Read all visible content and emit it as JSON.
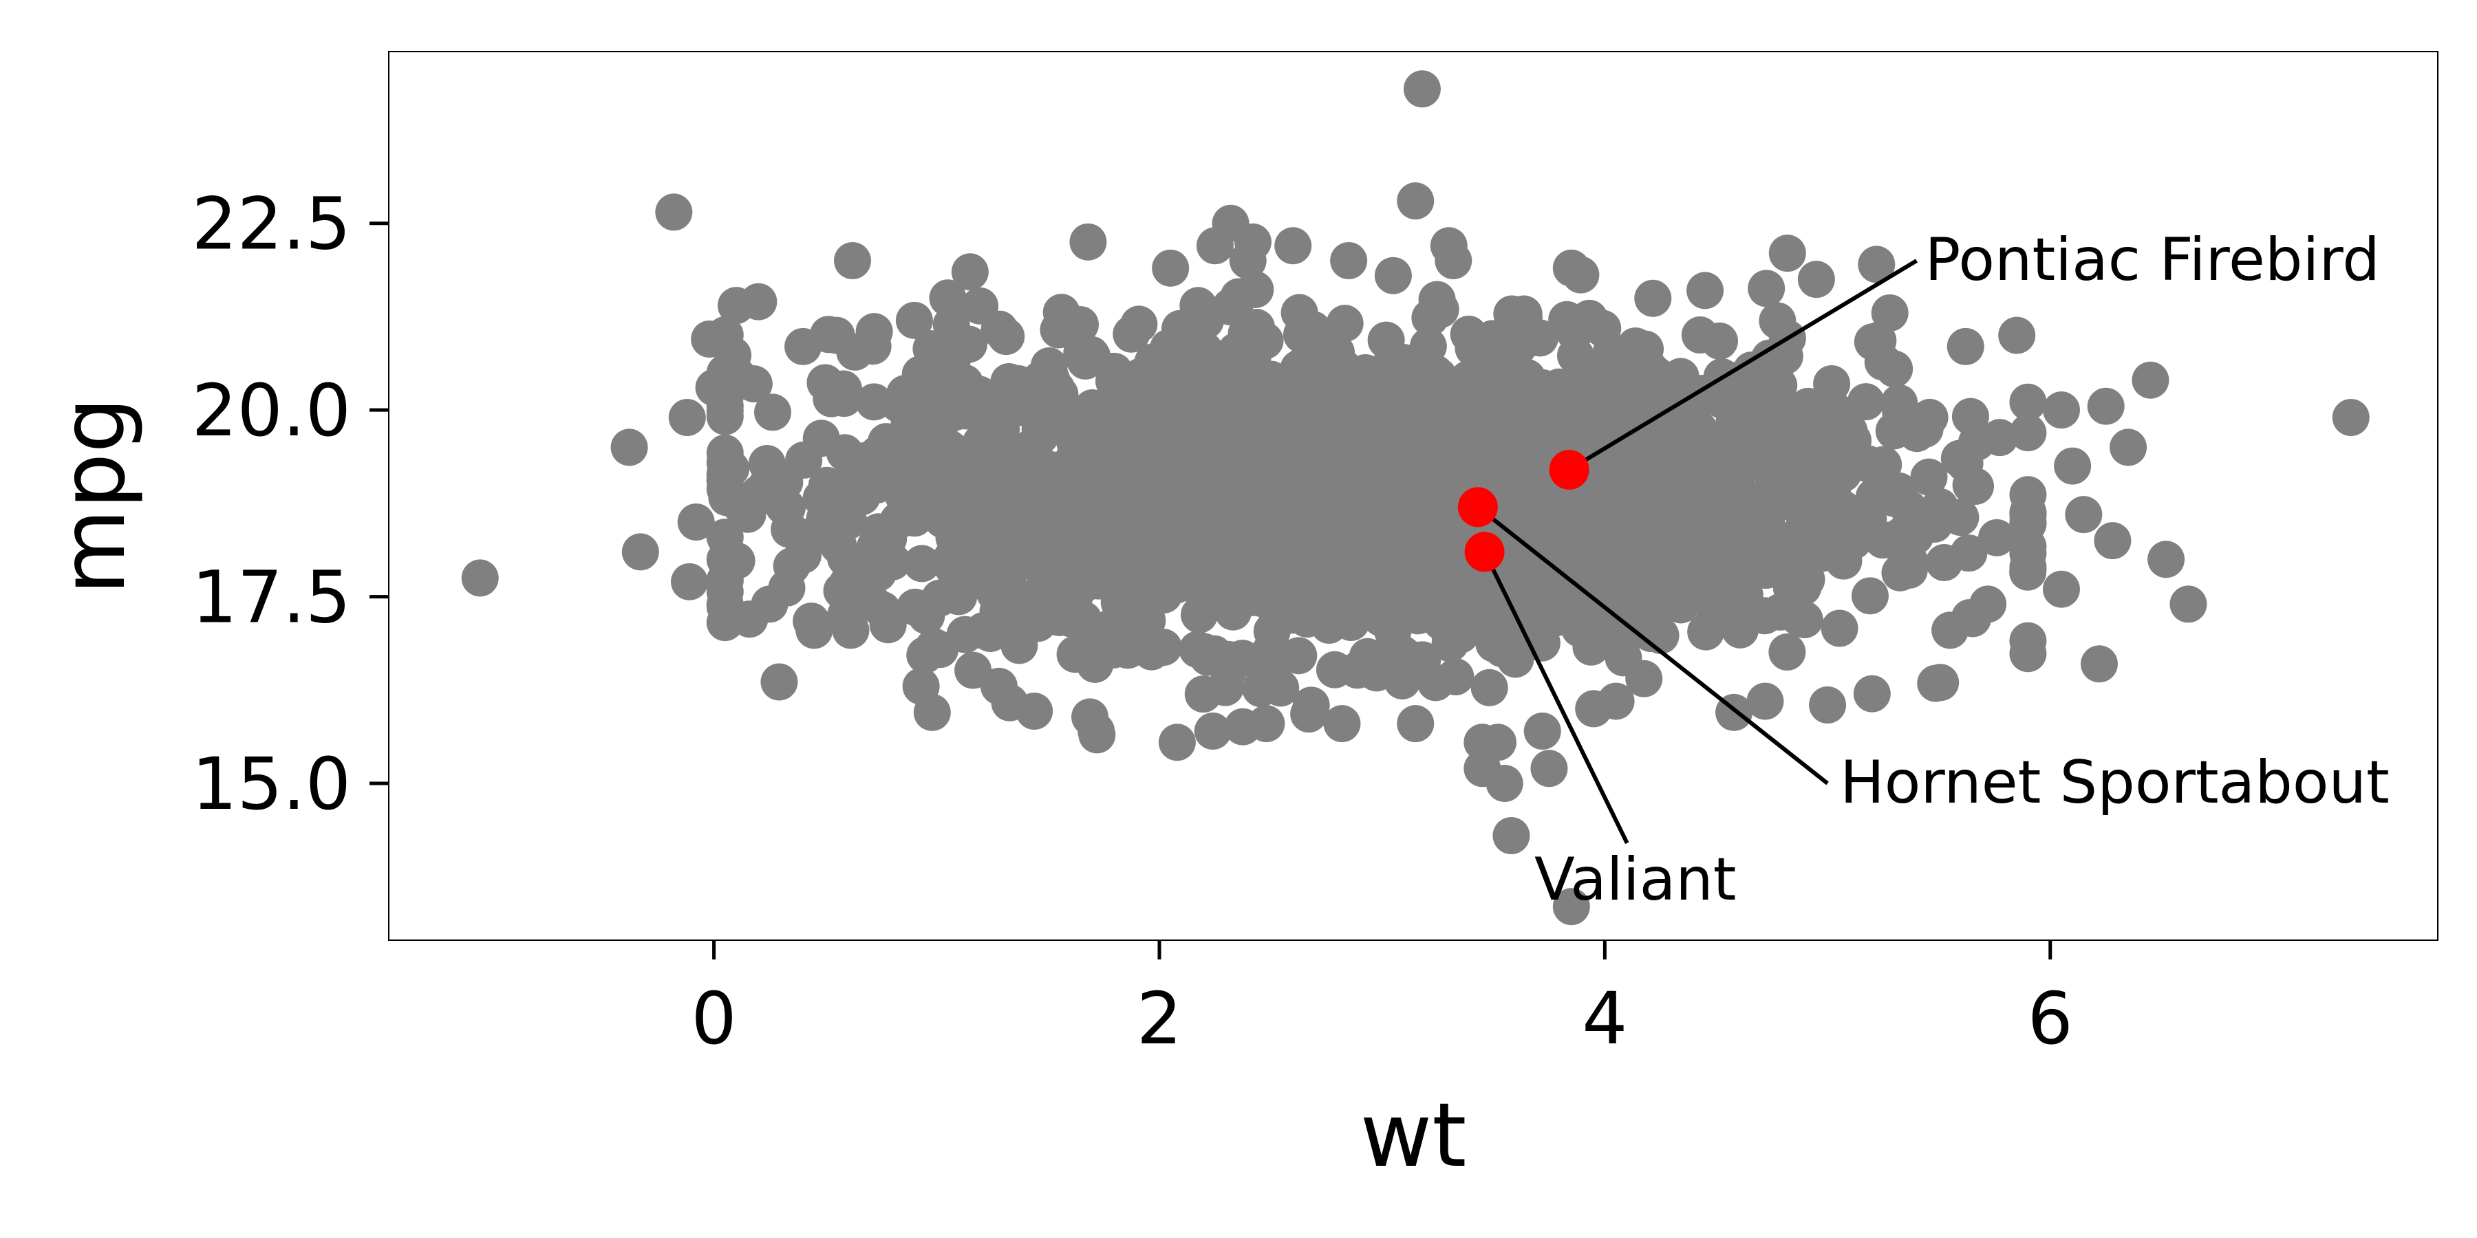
{
  "chart_data": {
    "type": "scatter",
    "title": "",
    "xlabel": "wt",
    "ylabel": "mpg",
    "xlim": [
      -1.46,
      7.74
    ],
    "ylim": [
      12.9,
      24.8
    ],
    "xticks": [
      0,
      2,
      4,
      6
    ],
    "yticks": [
      15.0,
      17.5,
      20.0,
      22.5
    ],
    "xtick_labels": [
      "0",
      "2",
      "4",
      "6"
    ],
    "ytick_labels": [
      "15.0",
      "17.5",
      "20.0",
      "22.5"
    ],
    "grid": false,
    "legend": "none",
    "point_color": "#808080",
    "highlight_color": "#ff0000",
    "background_cloud": {
      "description_only_for_rendering": false,
      "count": 2400,
      "x_mean": 2.9,
      "x_sd": 1.15,
      "y_mean": 18.9,
      "y_sd": 1.0
    },
    "outlier_points": [
      [
        -1.05,
        17.75
      ],
      [
        -0.38,
        19.5
      ],
      [
        -0.33,
        18.1
      ],
      [
        -0.18,
        22.65
      ],
      [
        -0.12,
        19.9
      ],
      [
        -0.11,
        17.7
      ],
      [
        -0.08,
        18.5
      ],
      [
        -0.02,
        20.95
      ],
      [
        0.0,
        20.3
      ],
      [
        0.05,
        19.05
      ],
      [
        0.1,
        21.4
      ],
      [
        0.2,
        21.45
      ],
      [
        0.18,
        20.35
      ],
      [
        0.16,
        17.2
      ],
      [
        0.25,
        17.4
      ],
      [
        0.4,
        20.85
      ],
      [
        0.45,
        17.05
      ],
      [
        0.55,
        21.0
      ],
      [
        0.72,
        21.05
      ],
      [
        0.9,
        21.2
      ],
      [
        0.93,
        16.3
      ],
      [
        0.98,
        15.95
      ],
      [
        1.05,
        21.5
      ],
      [
        1.15,
        21.85
      ],
      [
        1.28,
        16.3
      ],
      [
        1.68,
        22.25
      ],
      [
        1.72,
        15.65
      ],
      [
        2.05,
        21.9
      ],
      [
        2.08,
        15.55
      ],
      [
        2.25,
        22.2
      ],
      [
        2.32,
        22.5
      ],
      [
        2.42,
        22.25
      ],
      [
        2.48,
        15.8
      ],
      [
        2.6,
        22.2
      ],
      [
        2.82,
        15.8
      ],
      [
        2.85,
        22.0
      ],
      [
        3.05,
        21.8
      ],
      [
        3.15,
        15.8
      ],
      [
        3.15,
        22.8
      ],
      [
        3.18,
        24.3
      ],
      [
        3.3,
        22.2
      ],
      [
        3.45,
        15.55
      ],
      [
        3.45,
        15.2
      ],
      [
        3.52,
        15.55
      ],
      [
        3.55,
        15.0
      ],
      [
        3.58,
        14.3
      ],
      [
        3.72,
        15.7
      ],
      [
        3.75,
        15.2
      ],
      [
        3.85,
        13.35
      ],
      [
        3.85,
        21.9
      ],
      [
        3.95,
        16.0
      ],
      [
        4.05,
        16.1
      ],
      [
        4.45,
        21.6
      ],
      [
        4.58,
        15.95
      ],
      [
        4.72,
        16.1
      ],
      [
        4.82,
        22.1
      ],
      [
        4.95,
        21.75
      ],
      [
        5.0,
        16.05
      ],
      [
        5.2,
        16.2
      ],
      [
        5.22,
        21.95
      ],
      [
        5.28,
        21.3
      ],
      [
        5.3,
        20.55
      ],
      [
        5.55,
        17.05
      ],
      [
        5.62,
        20.85
      ],
      [
        5.72,
        17.4
      ],
      [
        5.85,
        21.0
      ],
      [
        6.05,
        20.0
      ],
      [
        6.1,
        19.25
      ],
      [
        6.05,
        17.6
      ],
      [
        6.15,
        18.6
      ],
      [
        6.22,
        16.6
      ],
      [
        6.25,
        20.05
      ],
      [
        6.28,
        18.25
      ],
      [
        6.35,
        19.5
      ],
      [
        6.45,
        20.4
      ],
      [
        6.52,
        18.0
      ],
      [
        6.62,
        17.4
      ],
      [
        7.35,
        19.9
      ]
    ],
    "highlighted_points": [
      {
        "label": "Pontiac Firebird",
        "x": 3.84,
        "y": 19.2,
        "label_x": 5.4,
        "label_y": 22.0
      },
      {
        "label": "Hornet Sportabout",
        "x": 3.43,
        "y": 18.7,
        "label_x": 5.0,
        "label_y": 15.0
      },
      {
        "label": "Valiant",
        "x": 3.46,
        "y": 18.1,
        "label_x": 4.1,
        "label_y": 14.2
      }
    ]
  }
}
